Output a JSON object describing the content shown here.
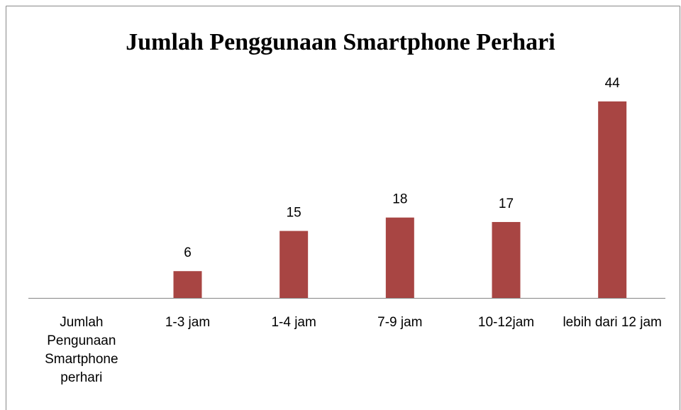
{
  "chart_data": {
    "type": "bar",
    "title": "Jumlah Penggunaan Smartphone Perhari",
    "categories": [
      "Jumlah Pengunaan Smartphone perhari",
      "1-3 jam",
      "1-4 jam",
      "7-9 jam",
      "10-12jam",
      "lebih dari 12 jam"
    ],
    "values": [
      null,
      6,
      15,
      18,
      17,
      44
    ],
    "color": "#a84543"
  }
}
